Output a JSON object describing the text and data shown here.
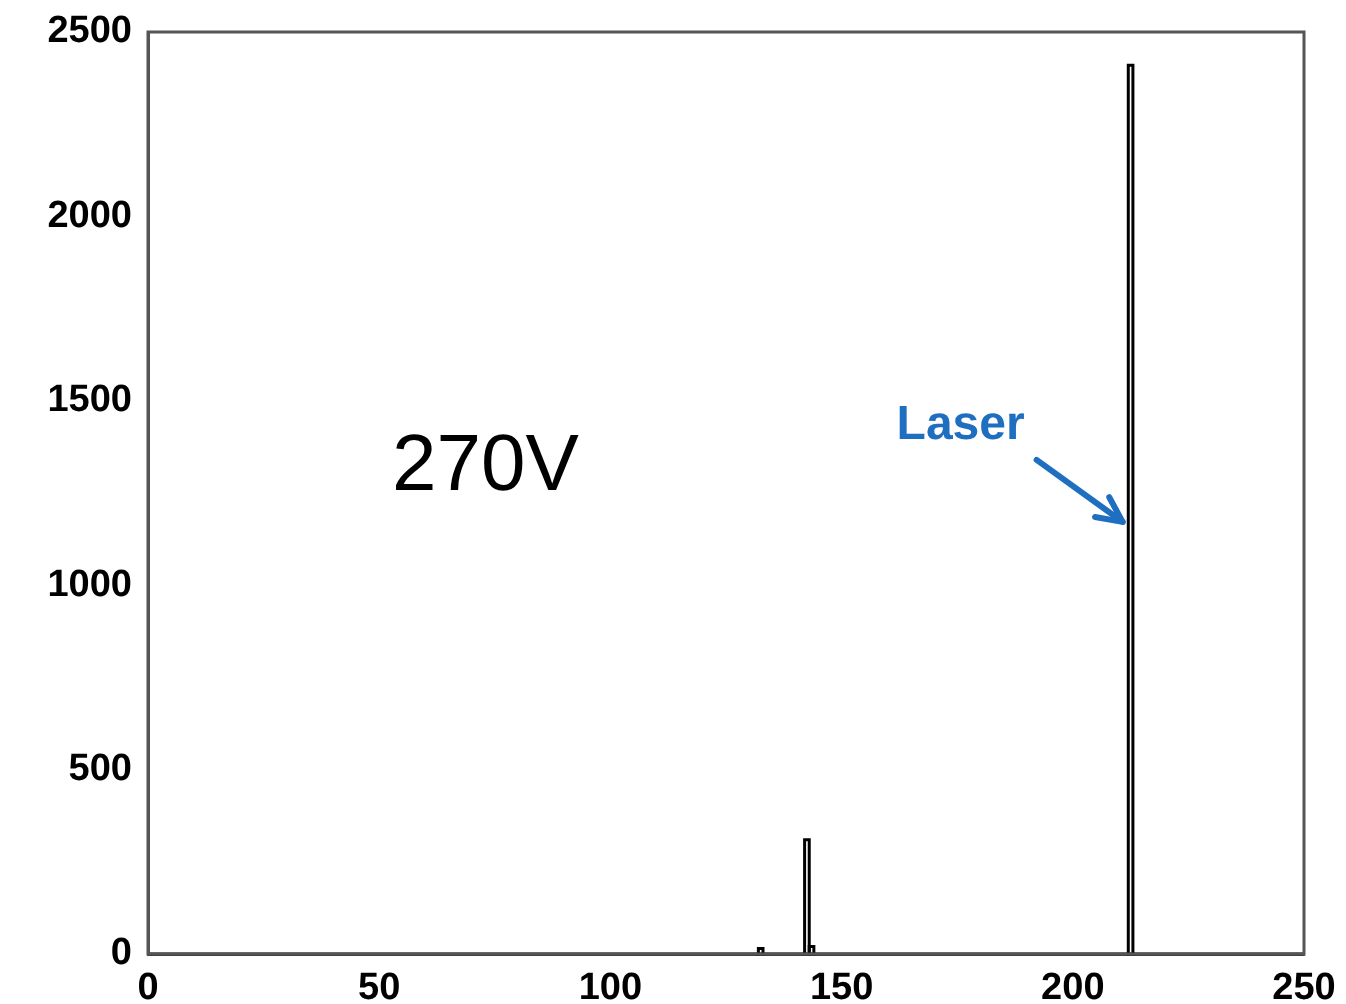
{
  "chart_data": {
    "type": "histogram",
    "bins": [
      0,
      132,
      133,
      142,
      143,
      144,
      212,
      213,
      250
    ],
    "values": [
      0,
      15,
      0,
      310,
      20,
      0,
      2410,
      0
    ],
    "color": "#000000",
    "xlim": [
      0,
      250
    ],
    "xticks": [
      0,
      50,
      100,
      150,
      200,
      250
    ],
    "ylim": [
      0,
      2500
    ],
    "yticks": [
      0,
      500,
      1000,
      1500,
      2000,
      2500
    ],
    "grid": false,
    "legend": false,
    "annotations": [
      "270V",
      {
        "text": "Laser",
        "x": 212.5,
        "y": 1150
      }
    ]
  }
}
